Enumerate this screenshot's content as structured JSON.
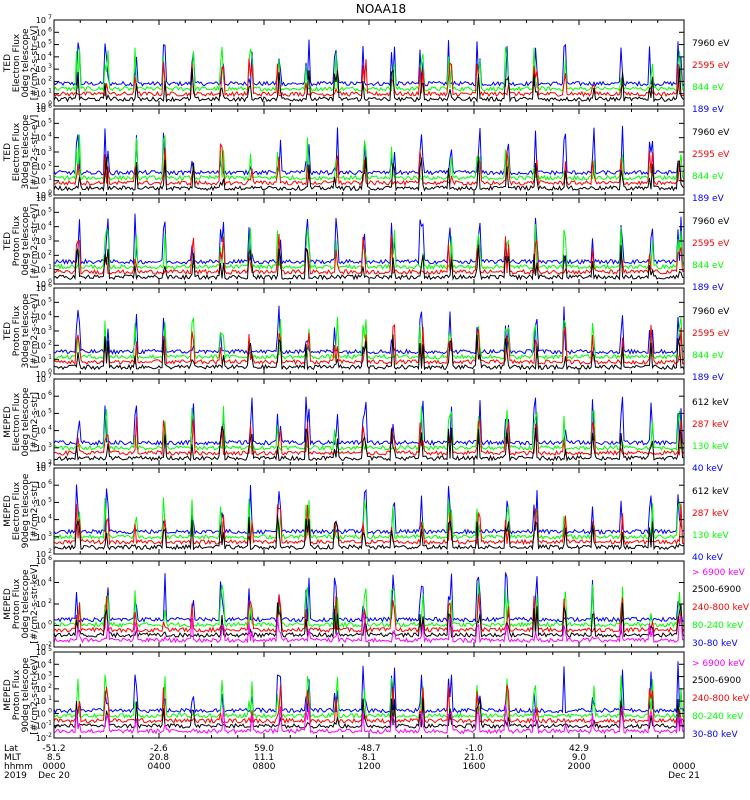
{
  "title": "NOAA18",
  "colors": {
    "blue": "#0000ff",
    "red": "#ff0000",
    "green": "#00ff00",
    "black": "#000000",
    "magenta": "#ff00ff"
  },
  "chart_data": [
    {
      "type": "line",
      "title": "NOAA18",
      "ylabel_lines": [
        "TED",
        "Electron Flux",
        "0deg telescope",
        "[#/cm2-s-str-eV]"
      ],
      "yscale": "log",
      "ylim": [
        1,
        10000000
      ],
      "yticks": [
        {
          "base": "10",
          "exp": "0"
        },
        {
          "base": "10",
          "exp": "1"
        },
        {
          "base": "10",
          "exp": "2"
        },
        {
          "base": "10",
          "exp": "3"
        },
        {
          "base": "10",
          "exp": "4"
        },
        {
          "base": "10",
          "exp": "5"
        },
        {
          "base": "10",
          "exp": "6"
        },
        {
          "base": "10",
          "exp": "7"
        }
      ],
      "legend": [
        {
          "name": "7960 eV",
          "color": "#000000"
        },
        {
          "name": "2595 eV",
          "color": "#ff0000"
        },
        {
          "name": "844 eV",
          "color": "#00ff00"
        },
        {
          "name": "189 eV",
          "color": "#0000ff"
        }
      ]
    },
    {
      "type": "line",
      "ylabel_lines": [
        "TED",
        "Electron Flux",
        "30deg telescope",
        "[#/cm2-s-str-eV]"
      ],
      "yscale": "log",
      "ylim": [
        1,
        1000000
      ],
      "yticks": [
        {
          "base": "10",
          "exp": "0"
        },
        {
          "base": "10",
          "exp": "1"
        },
        {
          "base": "10",
          "exp": "2"
        },
        {
          "base": "10",
          "exp": "3"
        },
        {
          "base": "10",
          "exp": "4"
        },
        {
          "base": "10",
          "exp": "5"
        },
        {
          "base": "10",
          "exp": "6"
        }
      ],
      "legend": [
        {
          "name": "7960 eV",
          "color": "#000000"
        },
        {
          "name": "2595 eV",
          "color": "#ff0000"
        },
        {
          "name": "844 eV",
          "color": "#00ff00"
        },
        {
          "name": "189 eV",
          "color": "#0000ff"
        }
      ]
    },
    {
      "type": "line",
      "ylabel_lines": [
        "TED",
        "Proton Flux",
        "0deg telescope",
        "[#/cm2-s-str-eV]"
      ],
      "yscale": "log",
      "ylim": [
        1,
        1000000
      ],
      "yticks": [
        {
          "base": "10",
          "exp": "0"
        },
        {
          "base": "10",
          "exp": "1"
        },
        {
          "base": "10",
          "exp": "2"
        },
        {
          "base": "10",
          "exp": "3"
        },
        {
          "base": "10",
          "exp": "4"
        },
        {
          "base": "10",
          "exp": "5"
        },
        {
          "base": "10",
          "exp": "6"
        }
      ],
      "legend": [
        {
          "name": "7960 eV",
          "color": "#000000"
        },
        {
          "name": "2595 eV",
          "color": "#ff0000"
        },
        {
          "name": "844 eV",
          "color": "#00ff00"
        },
        {
          "name": "189 eV",
          "color": "#0000ff"
        }
      ]
    },
    {
      "type": "line",
      "ylabel_lines": [
        "TED",
        "Proton Flux",
        "30deg telescope",
        "[#/cm2-s-str-eV]"
      ],
      "yscale": "log",
      "ylim": [
        1,
        1000000
      ],
      "yticks": [
        {
          "base": "10",
          "exp": "0"
        },
        {
          "base": "10",
          "exp": "1"
        },
        {
          "base": "10",
          "exp": "2"
        },
        {
          "base": "10",
          "exp": "3"
        },
        {
          "base": "10",
          "exp": "4"
        },
        {
          "base": "10",
          "exp": "5"
        },
        {
          "base": "10",
          "exp": "6"
        }
      ],
      "legend": [
        {
          "name": "7960 eV",
          "color": "#000000"
        },
        {
          "name": "2595 eV",
          "color": "#ff0000"
        },
        {
          "name": "844 eV",
          "color": "#00ff00"
        },
        {
          "name": "189 eV",
          "color": "#0000ff"
        }
      ]
    },
    {
      "type": "line",
      "ylabel_lines": [
        "MEPED",
        "Electron Flux",
        "0deg telescope",
        "[#/cm2-s-str]"
      ],
      "yscale": "log",
      "ylim": [
        100,
        10000000
      ],
      "yticks": [
        {
          "base": "10",
          "exp": "2"
        },
        {
          "base": "10",
          "exp": "3"
        },
        {
          "base": "10",
          "exp": "4"
        },
        {
          "base": "10",
          "exp": "5"
        },
        {
          "base": "10",
          "exp": "6"
        },
        {
          "base": "10",
          "exp": "7"
        }
      ],
      "legend": [
        {
          "name": "612 keV",
          "color": "#000000"
        },
        {
          "name": "287 keV",
          "color": "#ff0000"
        },
        {
          "name": "130 keV",
          "color": "#00ff00"
        },
        {
          "name": "40 keV",
          "color": "#0000ff"
        }
      ]
    },
    {
      "type": "line",
      "ylabel_lines": [
        "MEPED",
        "Electron Flux",
        "90deg telescope",
        "[#/cm2-s-str]"
      ],
      "yscale": "log",
      "ylim": [
        100,
        10000000
      ],
      "yticks": [
        {
          "base": "10",
          "exp": "2"
        },
        {
          "base": "10",
          "exp": "3"
        },
        {
          "base": "10",
          "exp": "4"
        },
        {
          "base": "10",
          "exp": "5"
        },
        {
          "base": "10",
          "exp": "6"
        },
        {
          "base": "10",
          "exp": "7"
        }
      ],
      "legend": [
        {
          "name": "612 keV",
          "color": "#000000"
        },
        {
          "name": "287 keV",
          "color": "#ff0000"
        },
        {
          "name": "130 keV",
          "color": "#00ff00"
        },
        {
          "name": "40 keV",
          "color": "#0000ff"
        }
      ]
    },
    {
      "type": "line",
      "ylabel_lines": [
        "MEPED",
        "Proton Flux",
        "0deg telescope",
        "[#/cm2-s-str-keV]"
      ],
      "yscale": "log",
      "ylim": [
        0.01,
        1000000
      ],
      "yticks": [
        {
          "base": "10",
          "exp": "-2"
        },
        {
          "base": "10",
          "exp": "0"
        },
        {
          "base": "10",
          "exp": "2"
        },
        {
          "base": "10",
          "exp": "4"
        },
        {
          "base": "10",
          "exp": "6"
        }
      ],
      "legend": [
        {
          "name": "> 6900 keV",
          "color": "#ff00ff"
        },
        {
          "name": "2500-6900",
          "color": "#000000"
        },
        {
          "name": "240-800 keV",
          "color": "#ff0000"
        },
        {
          "name": "80-240 keV",
          "color": "#00ff00"
        },
        {
          "name": "30-80 keV",
          "color": "#0000ff"
        }
      ]
    },
    {
      "type": "line",
      "ylabel_lines": [
        "MEPED",
        "Proton Flux",
        "90deg telescope",
        "[#/cm2-s-str-keV]"
      ],
      "yscale": "log",
      "ylim": [
        0.01,
        100000
      ],
      "yticks": [
        {
          "base": "10",
          "exp": "-2"
        },
        {
          "base": "10",
          "exp": "-1"
        },
        {
          "base": "10",
          "exp": "0"
        },
        {
          "base": "10",
          "exp": "1"
        },
        {
          "base": "10",
          "exp": "2"
        },
        {
          "base": "10",
          "exp": "3"
        },
        {
          "base": "10",
          "exp": "4"
        },
        {
          "base": "10",
          "exp": "5"
        }
      ],
      "legend": [
        {
          "name": "> 6900 keV",
          "color": "#ff00ff"
        },
        {
          "name": "2500-6900",
          "color": "#000000"
        },
        {
          "name": "240-800 keV",
          "color": "#ff0000"
        },
        {
          "name": "80-240 keV",
          "color": "#00ff00"
        },
        {
          "name": "30-80 keV",
          "color": "#0000ff"
        }
      ]
    }
  ],
  "x_axis": {
    "row_labels": [
      "Lat",
      "MLT",
      "hhmm",
      "2019"
    ],
    "xlim_hours": [
      0,
      24
    ],
    "ticks": [
      {
        "hour": 0,
        "lat": "-51.2",
        "mlt": "8.5",
        "hhmm": "0000",
        "date": "Dec 20"
      },
      {
        "hour": 4,
        "lat": "-2.6",
        "mlt": "20.8",
        "hhmm": "0400",
        "date": ""
      },
      {
        "hour": 8,
        "lat": "59.0",
        "mlt": "11.1",
        "hhmm": "0800",
        "date": ""
      },
      {
        "hour": 12,
        "lat": "-48.7",
        "mlt": "8.1",
        "hhmm": "1200",
        "date": ""
      },
      {
        "hour": 16,
        "lat": "-1.0",
        "mlt": "21.0",
        "hhmm": "1600",
        "date": ""
      },
      {
        "hour": 20,
        "lat": "42.9",
        "mlt": "9.0",
        "hhmm": "2000",
        "date": ""
      },
      {
        "hour": 24,
        "lat": "",
        "mlt": "",
        "hhmm": "0000",
        "date": "Dec 21"
      }
    ]
  }
}
